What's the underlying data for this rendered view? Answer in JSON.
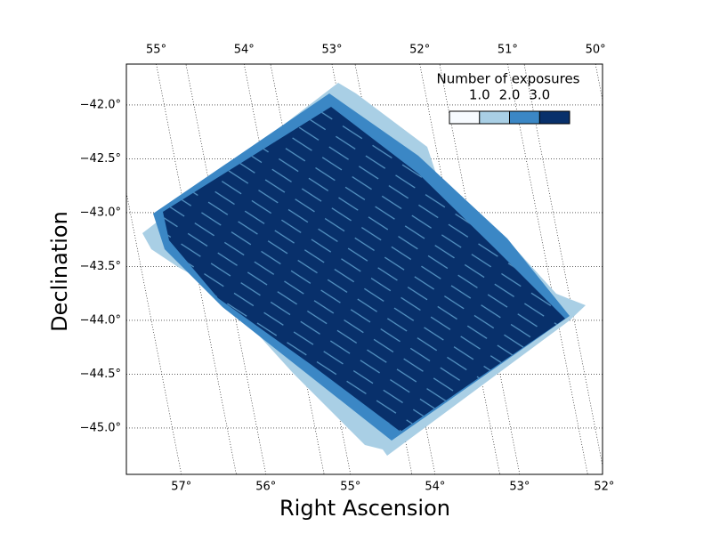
{
  "chart_data": {
    "type": "coverage-map",
    "x_label": "Right Ascension",
    "y_label": "Declination",
    "xlim": [
      57.65,
      52.02
    ],
    "top_xlim": [
      55.34,
      49.92
    ],
    "ylim": [
      -45.43,
      -41.62
    ],
    "xticks": [
      {
        "value": 57,
        "label": "57°"
      },
      {
        "value": 56,
        "label": "56°"
      },
      {
        "value": 55,
        "label": "55°"
      },
      {
        "value": 54,
        "label": "54°"
      },
      {
        "value": 53,
        "label": "53°"
      },
      {
        "value": 52,
        "label": "52°"
      }
    ],
    "top_xticks": [
      {
        "value": 55,
        "label": "55°"
      },
      {
        "value": 54,
        "label": "54°"
      },
      {
        "value": 53,
        "label": "53°"
      },
      {
        "value": 52,
        "label": "52°"
      },
      {
        "value": 51,
        "label": "51°"
      },
      {
        "value": 50,
        "label": "50°"
      }
    ],
    "yticks": [
      {
        "value": -42.0,
        "label": "−42.0°"
      },
      {
        "value": -42.5,
        "label": "−42.5°"
      },
      {
        "value": -43.0,
        "label": "−43.0°"
      },
      {
        "value": -43.5,
        "label": "−43.5°"
      },
      {
        "value": -44.0,
        "label": "−44.0°"
      },
      {
        "value": -44.5,
        "label": "−44.5°"
      },
      {
        "value": -45.0,
        "label": "−45.0°"
      }
    ],
    "grid": true,
    "colorbar": {
      "title": "Number of exposures",
      "lim": [
        0,
        4
      ],
      "ticks": [
        {
          "value": 1,
          "label": "1.0"
        },
        {
          "value": 2,
          "label": "2.0"
        },
        {
          "value": 3,
          "label": "3.0"
        }
      ],
      "colors": [
        "#f7fbff",
        "#a9cfe5",
        "#3b87c5",
        "#08306b"
      ]
    }
  }
}
